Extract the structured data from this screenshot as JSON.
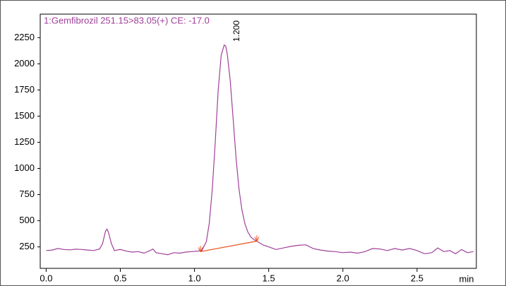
{
  "chart_data": {
    "type": "line",
    "title": "1:Gemfibrozil 251.15>83.05(+) CE: -17.0",
    "xlabel": "min",
    "x": [
      0,
      0.04,
      0.08,
      0.12,
      0.16,
      0.2,
      0.24,
      0.28,
      0.32,
      0.36,
      0.38,
      0.4,
      0.41,
      0.42,
      0.44,
      0.46,
      0.5,
      0.54,
      0.58,
      0.62,
      0.66,
      0.7,
      0.72,
      0.74,
      0.78,
      0.82,
      0.86,
      0.9,
      0.94,
      0.98,
      1.02,
      1.05,
      1.08,
      1.1,
      1.12,
      1.14,
      1.16,
      1.18,
      1.2,
      1.21,
      1.22,
      1.24,
      1.26,
      1.28,
      1.3,
      1.32,
      1.34,
      1.36,
      1.38,
      1.4,
      1.42,
      1.46,
      1.5,
      1.55,
      1.6,
      1.65,
      1.7,
      1.75,
      1.8,
      1.85,
      1.9,
      1.95,
      2.0,
      2.05,
      2.1,
      2.15,
      2.2,
      2.25,
      2.3,
      2.35,
      2.4,
      2.45,
      2.5,
      2.55,
      2.6,
      2.64,
      2.68,
      2.72,
      2.76,
      2.8,
      2.84,
      2.88
    ],
    "series": [
      {
        "color": "#a0409a",
        "values": [
          215,
          220,
          235,
          225,
          222,
          228,
          225,
          220,
          215,
          230,
          280,
          400,
          420,
          390,
          280,
          215,
          225,
          210,
          200,
          205,
          190,
          215,
          230,
          195,
          185,
          175,
          195,
          190,
          200,
          205,
          210,
          215,
          300,
          480,
          800,
          1250,
          1750,
          2080,
          2180,
          2170,
          2100,
          1850,
          1480,
          1100,
          800,
          600,
          470,
          390,
          345,
          320,
          305,
          270,
          250,
          225,
          240,
          255,
          265,
          270,
          235,
          220,
          210,
          205,
          195,
          200,
          190,
          205,
          235,
          230,
          215,
          235,
          220,
          235,
          215,
          185,
          195,
          240,
          205,
          215,
          185,
          225,
          195,
          205
        ]
      }
    ],
    "baseline": {
      "color": "#e8501a",
      "x": [
        1.04,
        1.42
      ],
      "values": [
        205,
        305
      ]
    },
    "annotations": [
      {
        "x": 1.2,
        "text": "1.200"
      }
    ],
    "xlim": [
      -0.04,
      2.9
    ],
    "ylim": [
      45,
      2475
    ],
    "xticks": [
      {
        "value": 0,
        "label": "0.0"
      },
      0.5,
      {
        "value": 1,
        "label": "1.0"
      },
      1.5,
      {
        "value": 2,
        "label": "2.0"
      },
      2.5
    ],
    "yticks": [
      250,
      500,
      750,
      1000,
      1250,
      1500,
      1750,
      2000,
      2250
    ]
  }
}
